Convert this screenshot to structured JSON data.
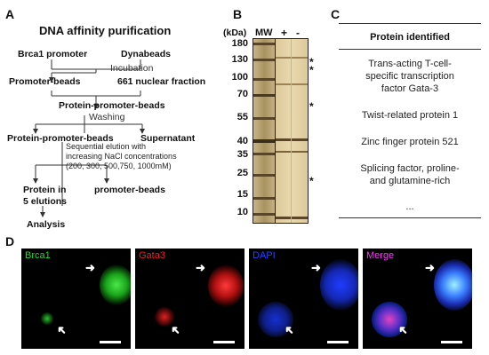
{
  "panels": {
    "A": "A",
    "B": "B",
    "C": "C",
    "D": "D"
  },
  "panelA": {
    "title": "DNA affinity purification",
    "brca1_promoter": "Brca1 promoter",
    "dynabeads": "Dynabeads",
    "incubation": "Incubation",
    "promoter_beads": "Promoter-beads",
    "nuclear_fraction": "661 nuclear fraction",
    "protein_promoter_beads_1": "Protein-promoter-beads",
    "washing": "Washing",
    "protein_promoter_beads_2": "Protein-promoter-beads",
    "supernatant": "Supernatant",
    "elution_line1": "Sequential elution with",
    "elution_line2": "increasing NaCl concentrations",
    "elution_line3": "(200, 300, 500,750, 1000mM)",
    "protein_in_line1": "Protein in",
    "protein_in_line2": "5 elutions",
    "promoter_beads_2": "promoter-beads",
    "analysis": "Analysis"
  },
  "panelB": {
    "unit": "(kDa)",
    "mw_label": "MW",
    "lane_plus": "+",
    "lane_minus": "-",
    "markers": [
      "180",
      "130",
      "100",
      "70",
      "55",
      "40",
      "35",
      "25",
      "15",
      "10"
    ],
    "stars": [
      "*",
      "*",
      "*",
      "*"
    ]
  },
  "panelC": {
    "header": "Protein identified",
    "proteins": [
      [
        "Trans-acting T-cell-",
        "specific transcription",
        "factor Gata-3"
      ],
      [
        "Twist-related protein 1"
      ],
      [
        "Zinc finger protein 521"
      ],
      [
        "Splicing factor, proline-",
        "and glutamine-rich"
      ],
      [
        "..."
      ]
    ]
  },
  "panelD": {
    "labels": [
      {
        "text": "Brca1",
        "color": "#22dd22"
      },
      {
        "text": "Gata3",
        "color": "#ee2222"
      },
      {
        "text": "DAPI",
        "color": "#2244ff"
      },
      {
        "text": "Merge",
        "color": "#ff33ff"
      }
    ]
  }
}
